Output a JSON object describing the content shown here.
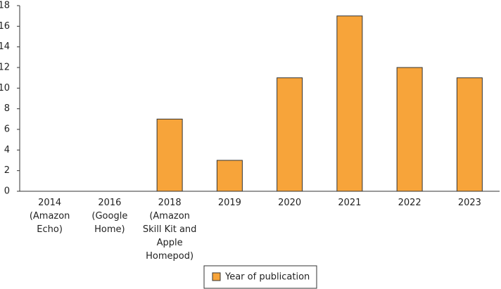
{
  "chart_data": {
    "type": "bar",
    "categories": [
      "2014\n(Amazon\nEcho)",
      "2016\n(Google\nHome)",
      "2018\n(Amazon\nSkill Kit and\nApple\nHomepod)",
      "2019",
      "2020",
      "2021",
      "2022",
      "2023"
    ],
    "series": [
      {
        "name": "Year of publication",
        "color": "#f7a43a",
        "values": [
          0,
          0,
          7,
          3,
          11,
          17,
          12,
          11
        ]
      }
    ],
    "ylim": [
      0,
      18
    ],
    "yticks": [
      0,
      2,
      4,
      6,
      8,
      10,
      12,
      14,
      16,
      18
    ],
    "grid": false,
    "legend": "bottom"
  }
}
